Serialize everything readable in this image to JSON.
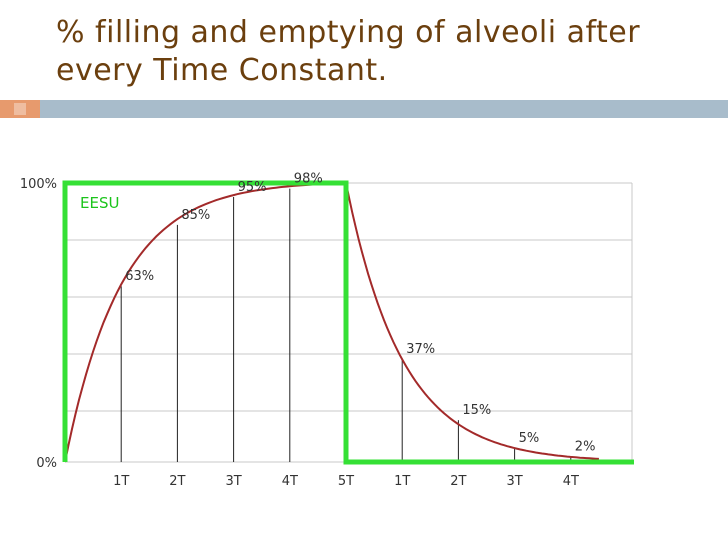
{
  "title": "% filling and emptying of alveoli after every Time Constant.",
  "colors": {
    "title": "#6b3f0e",
    "accent_bar": "#a8bccb",
    "accent_square": "#e79a6d",
    "curve": "#a32a2a",
    "box": "#35e035",
    "grid": "#c8c8c8"
  },
  "chart_data": {
    "type": "line",
    "annotation": "EESU",
    "y_tick_labels": [
      "100%",
      "0%"
    ],
    "ylim": [
      0,
      100
    ],
    "x_tick_labels": [
      "1T",
      "2T",
      "3T",
      "4T",
      "5T",
      "1T",
      "2T",
      "3T",
      "4T"
    ],
    "grid": true,
    "series": [
      {
        "phase": "filling",
        "x": [
          0,
          1,
          2,
          3,
          4,
          5
        ],
        "y": [
          0,
          63,
          85,
          95,
          98,
          100
        ],
        "labels": [
          "",
          "63%",
          "85%",
          "95%",
          "98%",
          ""
        ]
      },
      {
        "phase": "emptying",
        "x": [
          5,
          6,
          7,
          8,
          9
        ],
        "y": [
          100,
          37,
          15,
          5,
          2
        ],
        "labels": [
          "",
          "37%",
          "15%",
          "5%",
          "2%"
        ]
      }
    ]
  }
}
